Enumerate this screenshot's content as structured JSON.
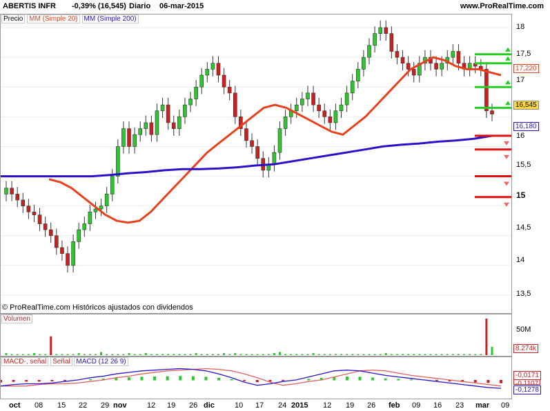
{
  "header": {
    "title": "ABERTIS INFR",
    "change": "-0,39% (16,545)",
    "period": "Diario",
    "date": "06-mar-2015",
    "site": "www.ProRealTime.com"
  },
  "price_panel": {
    "legend": [
      "Precio",
      "MM (Simple 20)",
      "MM (Simple 200)"
    ],
    "ticks": [
      "18",
      "17,5",
      "17",
      "16,5",
      "16",
      "15,5",
      "15",
      "14,5",
      "14",
      "13,5"
    ],
    "tags": {
      "ma20": "17,220",
      "price": "16,545",
      "ma200": "16,180"
    },
    "footer": "© ProRealTime.com  Históricos ajustados con dividendos",
    "colors": {
      "ma20": "#e8401c",
      "ma200": "#2a10c8",
      "up": "#2ec52e",
      "down": "#cc1f1f"
    }
  },
  "volume_panel": {
    "legend": "Volumen",
    "ticks": [
      "50M"
    ],
    "tag": "8.274k"
  },
  "macd_panel": {
    "legend": [
      "MACD-, señal",
      "Señal",
      "MACD (12 26 9)"
    ],
    "tags": [
      "-0,0171",
      "-0,1107",
      "-0,1278"
    ]
  },
  "x_axis": {
    "labels": [
      "oct",
      "08",
      "15",
      "22",
      "29",
      "nov",
      "12",
      "19",
      "26",
      "dic",
      "10",
      "17",
      "24",
      "2015",
      "12",
      "19",
      "26",
      "feb",
      "09",
      "16",
      "23",
      "mar",
      "09"
    ]
  },
  "chart_data": {
    "type": "candlestick",
    "title": "ABERTIS INFR",
    "xlabel": "",
    "ylabel": "",
    "ylim": [
      13.3,
      18.1
    ],
    "closes": [
      15.3,
      15.2,
      15.1,
      15.0,
      14.9,
      14.85,
      14.7,
      14.6,
      14.5,
      14.3,
      14.2,
      14.0,
      14.4,
      14.6,
      14.7,
      14.9,
      14.95,
      15.0,
      15.2,
      15.5,
      16.0,
      16.3,
      16.0,
      16.2,
      16.3,
      16.4,
      16.2,
      16.6,
      16.7,
      16.4,
      16.3,
      16.5,
      16.7,
      16.8,
      17.0,
      17.2,
      17.3,
      17.4,
      17.2,
      17.0,
      16.9,
      16.5,
      16.3,
      16.1,
      16.0,
      15.8,
      15.6,
      15.7,
      15.9,
      16.3,
      16.5,
      16.6,
      16.7,
      16.8,
      16.9,
      16.7,
      16.6,
      16.5,
      16.4,
      16.6,
      16.7,
      16.9,
      17.1,
      17.3,
      17.5,
      17.7,
      17.9,
      18.0,
      17.9,
      17.6,
      17.5,
      17.4,
      17.3,
      17.2,
      17.4,
      17.5,
      17.4,
      17.3,
      17.4,
      17.5,
      17.6,
      17.4,
      17.3,
      17.4,
      17.35,
      17.3,
      16.6,
      16.545
    ],
    "series": [
      {
        "name": "MM (Simple 20)",
        "values": [
          15.45,
          15.4,
          15.3,
          15.15,
          15.0,
          14.85,
          14.75,
          14.72,
          14.75,
          14.9,
          15.1,
          15.3,
          15.5,
          15.7,
          15.9,
          16.05,
          16.2,
          16.35,
          16.5,
          16.65,
          16.7,
          16.65,
          16.55,
          16.45,
          16.35,
          16.25,
          16.2,
          16.35,
          16.5,
          16.7,
          16.9,
          17.1,
          17.3,
          17.4,
          17.5,
          17.45,
          17.35,
          17.3,
          17.3,
          17.25,
          17.2
        ]
      },
      {
        "name": "MM (Simple 200)",
        "values": [
          15.5,
          15.5,
          15.5,
          15.5,
          15.5,
          15.5,
          15.52,
          15.55,
          15.57,
          15.6,
          15.62,
          15.62,
          15.63,
          15.65,
          15.68,
          15.7,
          15.75,
          15.8,
          15.85,
          15.9,
          15.95,
          16.0,
          16.03,
          16.05,
          16.08,
          16.1,
          16.13,
          16.18
        ]
      }
    ],
    "levels_green": [
      17.55,
      17.4,
      17.0,
      16.65
    ],
    "levels_red": [
      16.18,
      15.95,
      15.5,
      15.15
    ],
    "volume": [
      2,
      1,
      1,
      1,
      1,
      2,
      1,
      1,
      18,
      1,
      1,
      1,
      1,
      2,
      1,
      1,
      1,
      3,
      1,
      1,
      1,
      1,
      2,
      1,
      1,
      2,
      1,
      1,
      1,
      1,
      1,
      1,
      1,
      1,
      2,
      1,
      1,
      1,
      1,
      2,
      1,
      2,
      1,
      1,
      1,
      1,
      1,
      1,
      2,
      3,
      1,
      1,
      1,
      1,
      1,
      2,
      1,
      1,
      1,
      1,
      1,
      1,
      1,
      1,
      1,
      1,
      1,
      1,
      2,
      1,
      1,
      1,
      1,
      1,
      1,
      1,
      1,
      1,
      1,
      1,
      1,
      1,
      1,
      1,
      1,
      1,
      35,
      8
    ],
    "macd": [
      -0.08,
      -0.06,
      -0.05,
      -0.05,
      -0.04,
      -0.02,
      0.0,
      0.03,
      0.05,
      0.08,
      0.1,
      0.12,
      0.13,
      0.14,
      0.15,
      0.14,
      0.12,
      0.08,
      0.03,
      -0.03,
      -0.07,
      -0.05,
      -0.02,
      0.0,
      0.04,
      0.08,
      0.12,
      0.13,
      0.12,
      0.09,
      0.06,
      0.04,
      0.02,
      0.0,
      -0.02,
      -0.04,
      -0.06,
      -0.08,
      -0.1,
      -0.11
    ]
  }
}
